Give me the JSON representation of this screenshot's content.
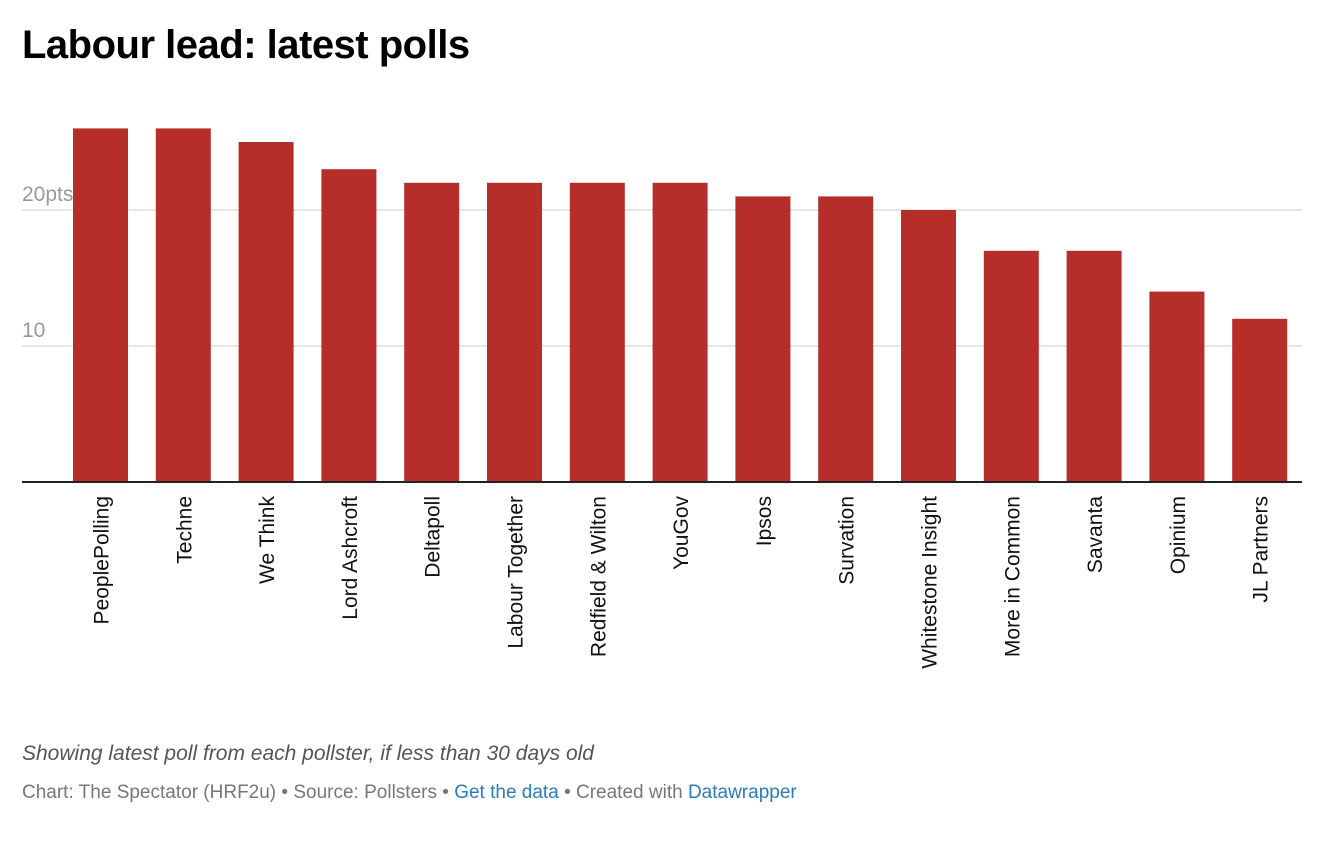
{
  "title": "Labour lead: latest polls",
  "chart_data": {
    "type": "bar",
    "title": "Labour lead: latest polls",
    "xlabel": "",
    "ylabel": "",
    "ylim": [
      0,
      26
    ],
    "y_ticks": [
      {
        "value": 20,
        "label": "20pts"
      },
      {
        "value": 10,
        "label": "10"
      }
    ],
    "grid": true,
    "bar_color": "#b52e2a",
    "categories": [
      "PeoplePolling",
      "Techne",
      "We Think",
      "Lord Ashcroft",
      "Deltapoll",
      "Labour Together",
      "Redfield & Wilton",
      "YouGov",
      "Ipsos",
      "Survation",
      "Whitestone Insight",
      "More in Common",
      "Savanta",
      "Opinium",
      "JL Partners"
    ],
    "values": [
      26,
      26,
      25,
      23,
      22,
      22,
      22,
      22,
      21,
      21,
      20,
      17,
      17,
      14,
      12
    ]
  },
  "notes": "Showing latest poll from each pollster, if less than 30 days old",
  "footer": {
    "chart_credit": "Chart: The Spectator (HRF2u)",
    "separator": "•",
    "source": "Source: Pollsters",
    "get_data_link": "Get the data",
    "created_with": "Created with",
    "tool_link": "Datawrapper"
  },
  "colors": {
    "bar": "#b52e2a",
    "link": "#2a7bbf"
  }
}
